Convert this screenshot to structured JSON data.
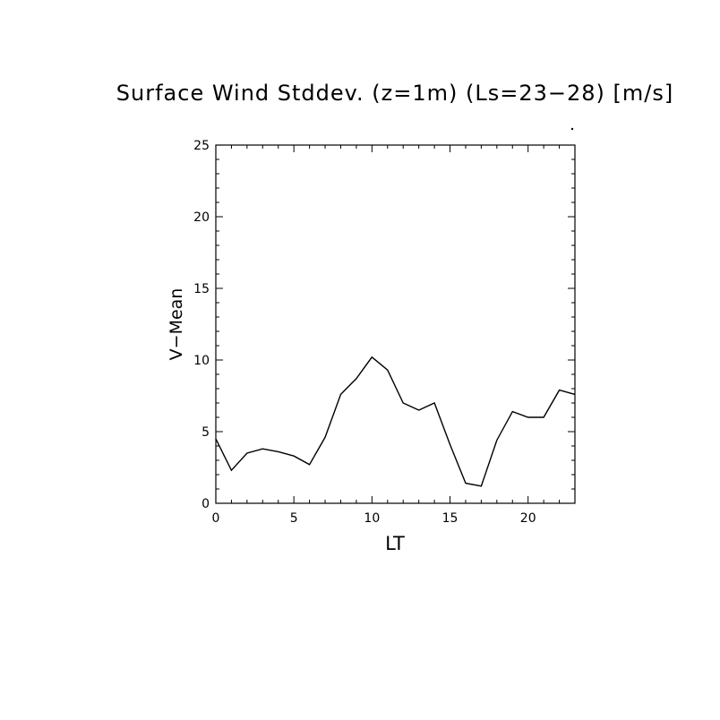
{
  "chart_data": {
    "type": "line",
    "title": "Surface Wind Stddev. (z=1m) (Ls=23−28) [m/s]",
    "xlabel": "LT",
    "ylabel": "V−Mean",
    "xlim": [
      0,
      23
    ],
    "ylim": [
      0,
      25
    ],
    "x_ticks": [
      0,
      5,
      10,
      15,
      20
    ],
    "y_ticks": [
      0,
      5,
      10,
      15,
      20,
      25
    ],
    "grid": false,
    "series": [
      {
        "x": [
          0,
          1,
          2,
          3,
          4,
          5,
          6,
          7,
          8,
          9,
          10,
          11,
          12,
          13,
          14,
          15,
          16,
          17,
          18,
          19,
          20,
          21,
          22,
          23
        ],
        "values": [
          4.5,
          2.3,
          3.5,
          3.8,
          3.6,
          3.3,
          2.7,
          4.6,
          7.6,
          8.7,
          10.2,
          9.3,
          7.0,
          6.5,
          7.0,
          4.1,
          1.4,
          1.2,
          4.4,
          6.4,
          6.0,
          6.0,
          7.9,
          7.6
        ],
        "color": "#000000"
      }
    ]
  }
}
